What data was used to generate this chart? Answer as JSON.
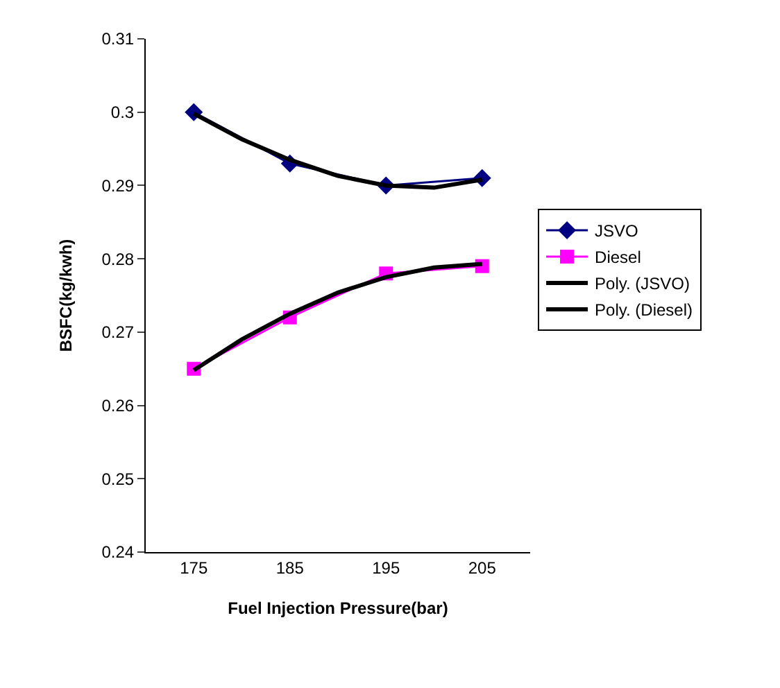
{
  "chart_data": {
    "type": "line",
    "xlabel": "Fuel Injection Pressure(bar)",
    "ylabel": "BSFC(kg/kwh)",
    "x": [
      175,
      185,
      195,
      205
    ],
    "series": [
      {
        "name": "JSVO",
        "color": "#000080",
        "marker": "diamond",
        "values": [
          0.3,
          0.293,
          0.29,
          0.291
        ]
      },
      {
        "name": "Diesel",
        "color": "#ff00ff",
        "marker": "square",
        "values": [
          0.265,
          0.272,
          0.278,
          0.279
        ]
      },
      {
        "name": "Poly. (JSVO)",
        "color": "#000000",
        "marker": "none",
        "x": [
          175,
          180,
          185,
          190,
          195,
          200,
          205
        ],
        "values": [
          0.2998,
          0.2963,
          0.2935,
          0.2913,
          0.29,
          0.2897,
          0.2908
        ]
      },
      {
        "name": "Poly. (Diesel)",
        "color": "#000000",
        "marker": "none",
        "x": [
          175,
          180,
          185,
          190,
          195,
          200,
          205
        ],
        "values": [
          0.2648,
          0.269,
          0.2725,
          0.2754,
          0.2775,
          0.2788,
          0.2793
        ]
      }
    ],
    "xlim": [
      170,
      210
    ],
    "xticks": [
      175,
      185,
      195,
      205
    ],
    "ylim": [
      0.24,
      0.31
    ],
    "yticks": [
      0.24,
      0.25,
      0.26,
      0.27,
      0.28,
      0.29,
      0.3,
      0.31
    ],
    "grid": false,
    "legend": "right",
    "line_style": "solid"
  }
}
